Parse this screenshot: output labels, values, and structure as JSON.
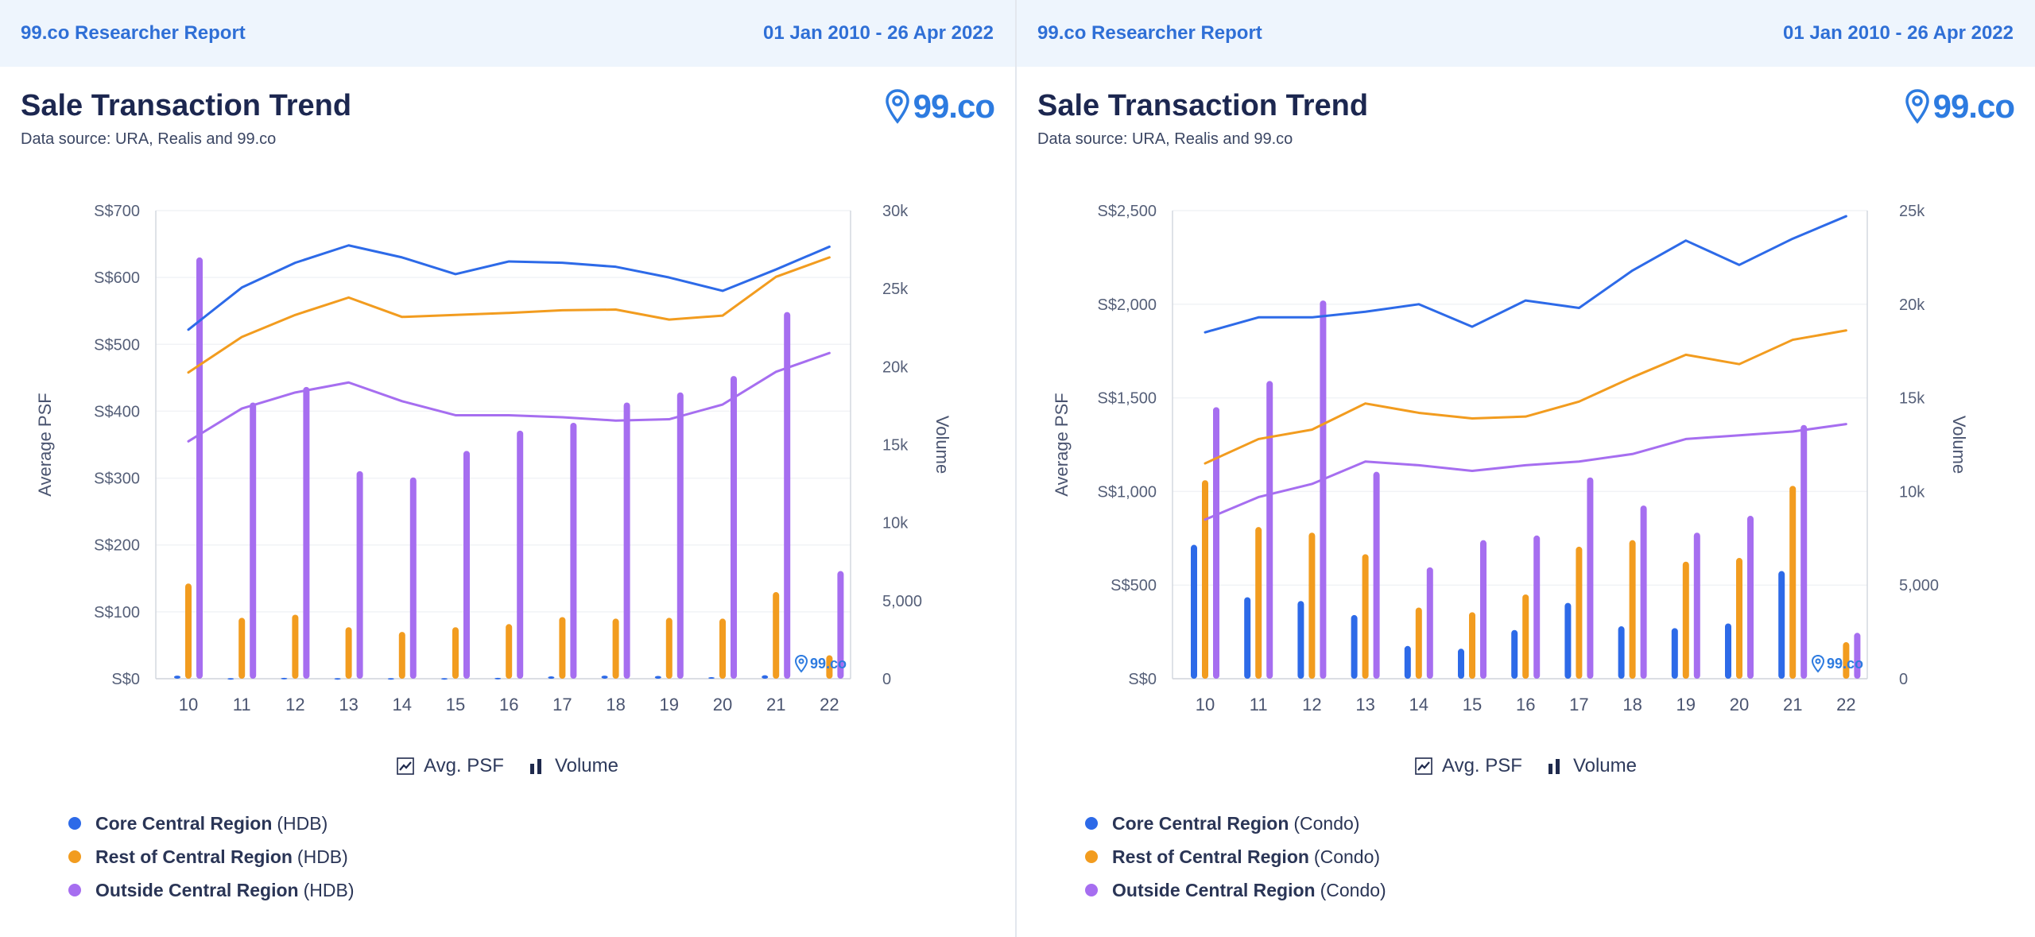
{
  "colors": {
    "core": "#2d6ae8",
    "rest": "#f29c1f",
    "outside": "#a66ef0",
    "accent": "#2f6fd6"
  },
  "panels": [
    {
      "report_label": "99.co Researcher Report",
      "date_range": "01 Jan 2010 - 26 Apr 2022",
      "title": "Sale Transaction Trend",
      "source": "Data source: URA, Realis and 99.co",
      "logo_text": "99.co",
      "watermark": "99.co",
      "legend_types": {
        "psf": "Avg. PSF",
        "volume": "Volume"
      },
      "regions": [
        {
          "name": "Core Central Region",
          "type": "(HDB)"
        },
        {
          "name": "Rest of Central Region",
          "type": "(HDB)"
        },
        {
          "name": "Outside Central Region",
          "type": "(HDB)"
        }
      ]
    },
    {
      "report_label": "99.co Researcher Report",
      "date_range": "01 Jan 2010 - 26 Apr 2022",
      "title": "Sale Transaction Trend",
      "source": "Data source: URA, Realis and 99.co",
      "logo_text": "99.co",
      "watermark": "99.co",
      "legend_types": {
        "psf": "Avg. PSF",
        "volume": "Volume"
      },
      "regions": [
        {
          "name": "Core Central Region",
          "type": "(Condo)"
        },
        {
          "name": "Rest of Central Region",
          "type": "(Condo)"
        },
        {
          "name": "Outside Central Region",
          "type": "(Condo)"
        }
      ]
    }
  ],
  "chart_data": [
    {
      "type": "bar+line",
      "title": "Sale Transaction Trend",
      "categories": [
        "10",
        "11",
        "12",
        "13",
        "14",
        "15",
        "16",
        "17",
        "18",
        "19",
        "20",
        "21",
        "22"
      ],
      "ylabel": "Average PSF",
      "ylabel_right": "Volume",
      "y_ticks": [
        "S$0",
        "S$100",
        "S$200",
        "S$300",
        "S$400",
        "S$500",
        "S$600",
        "S$700"
      ],
      "y_right_ticks": [
        "0",
        "5,000",
        "10k",
        "15k",
        "20k",
        "25k",
        "30k"
      ],
      "ylim": [
        0,
        700
      ],
      "ylim_right": [
        0,
        30000
      ],
      "grid": true,
      "lines": [
        {
          "name": "Core Central Region (HDB)",
          "color_key": "core",
          "values": [
            522,
            585,
            622,
            648,
            630,
            605,
            624,
            622,
            616,
            600,
            580,
            612,
            646
          ]
        },
        {
          "name": "Rest of Central Region (HDB)",
          "color_key": "rest",
          "values": [
            458,
            511,
            544,
            570,
            541,
            544,
            547,
            551,
            552,
            537,
            543,
            601,
            630
          ]
        },
        {
          "name": "Outside Central Region (HDB)",
          "color_key": "outside",
          "values": [
            355,
            404,
            428,
            443,
            415,
            394,
            394,
            391,
            386,
            388,
            410,
            459,
            487
          ]
        }
      ],
      "bars": [
        {
          "name": "Core Central Region (HDB)",
          "color_key": "core",
          "values": [
            200,
            40,
            60,
            40,
            40,
            40,
            60,
            150,
            200,
            180,
            100,
            220,
            0
          ]
        },
        {
          "name": "Rest of Central Region (HDB)",
          "color_key": "rest",
          "values": [
            6100,
            3900,
            4100,
            3300,
            3000,
            3300,
            3500,
            3950,
            3850,
            3900,
            3850,
            5550,
            1500
          ]
        },
        {
          "name": "Outside Central Region (HDB)",
          "color_key": "outside",
          "values": [
            27000,
            17700,
            18700,
            13300,
            12900,
            14600,
            15900,
            16400,
            17700,
            18350,
            19400,
            23500,
            6900
          ]
        }
      ]
    },
    {
      "type": "bar+line",
      "title": "Sale Transaction Trend",
      "categories": [
        "10",
        "11",
        "12",
        "13",
        "14",
        "15",
        "16",
        "17",
        "18",
        "19",
        "20",
        "21",
        "22"
      ],
      "ylabel": "Average PSF",
      "ylabel_right": "Volume",
      "y_ticks": [
        "S$0",
        "S$500",
        "S$1,000",
        "S$1,500",
        "S$2,000",
        "S$2,500"
      ],
      "y_right_ticks": [
        "0",
        "5,000",
        "10k",
        "15k",
        "20k",
        "25k"
      ],
      "ylim": [
        0,
        2500
      ],
      "ylim_right": [
        0,
        25000
      ],
      "grid": true,
      "lines": [
        {
          "name": "Core Central Region (Condo)",
          "color_key": "core",
          "values": [
            1850,
            1930,
            1930,
            1960,
            2000,
            1880,
            2020,
            1980,
            2180,
            2340,
            2210,
            2350,
            2470
          ]
        },
        {
          "name": "Rest of Central Region (Condo)",
          "color_key": "rest",
          "values": [
            1150,
            1280,
            1330,
            1470,
            1420,
            1390,
            1400,
            1480,
            1610,
            1730,
            1680,
            1810,
            1860
          ]
        },
        {
          "name": "Outside Central Region (Condo)",
          "color_key": "outside",
          "values": [
            850,
            970,
            1040,
            1160,
            1140,
            1110,
            1140,
            1160,
            1200,
            1280,
            1300,
            1320,
            1360
          ]
        }
      ],
      "bars": [
        {
          "name": "Core Central Region (Condo)",
          "color_key": "core",
          "values": [
            7150,
            4350,
            4150,
            3400,
            1750,
            1600,
            2600,
            4050,
            2800,
            2700,
            2950,
            5750,
            0
          ]
        },
        {
          "name": "Rest of Central Region (Condo)",
          "color_key": "rest",
          "values": [
            10600,
            8100,
            7800,
            6650,
            3800,
            3550,
            4500,
            7050,
            7400,
            6250,
            6450,
            10300,
            1950
          ]
        },
        {
          "name": "Outside Central Region (Condo)",
          "color_key": "outside",
          "values": [
            14500,
            15900,
            20200,
            11050,
            5950,
            7400,
            7650,
            10750,
            9250,
            7800,
            8700,
            13550,
            2450
          ]
        }
      ]
    }
  ]
}
